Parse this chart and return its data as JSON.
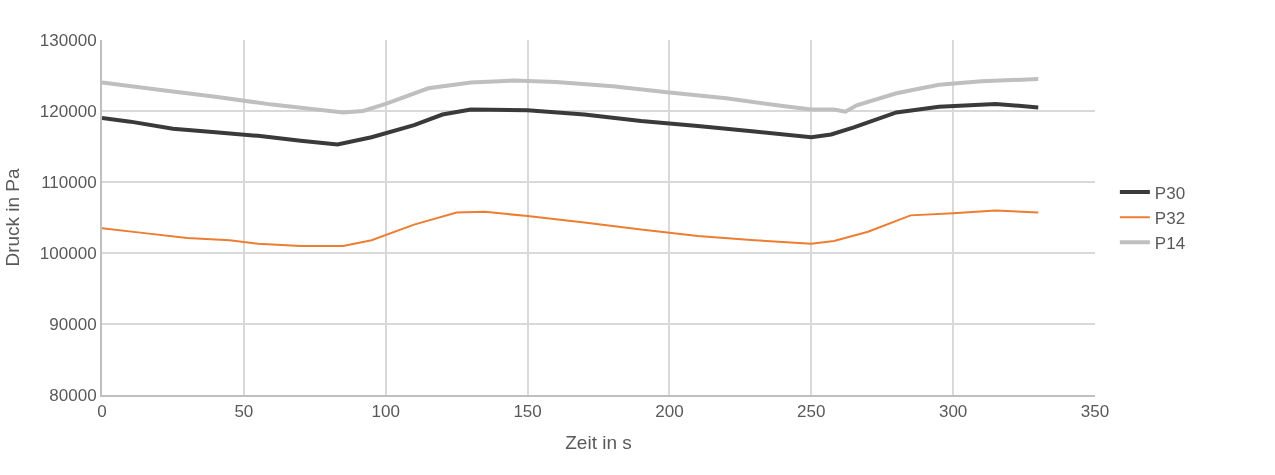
{
  "chart_data": {
    "type": "line",
    "xlabel": "Zeit in s",
    "ylabel": "Druck in Pa",
    "xlim": [
      0,
      350
    ],
    "xticks": [
      0,
      50,
      100,
      150,
      200,
      250,
      300,
      350
    ],
    "ylim": [
      80000,
      130000
    ],
    "yticks": [
      80000,
      90000,
      100000,
      110000,
      120000,
      130000
    ],
    "grid": true,
    "legend": "right",
    "marker": "none",
    "line_style": "solid",
    "series": [
      {
        "name": "P30",
        "color": "#3a3a3a",
        "x": [
          0,
          10,
          25,
          40,
          55,
          70,
          83,
          95,
          110,
          120,
          130,
          150,
          170,
          190,
          210,
          230,
          250,
          257,
          265,
          280,
          295,
          315,
          330
        ],
        "values": [
          119000,
          118500,
          117500,
          117000,
          116500,
          115800,
          115300,
          116300,
          118000,
          119500,
          120200,
          120100,
          119500,
          118600,
          117900,
          117100,
          116300,
          116700,
          117700,
          119800,
          120600,
          121000,
          120500
        ]
      },
      {
        "name": "P32",
        "color": "#ed7d31",
        "x": [
          0,
          15,
          30,
          45,
          55,
          70,
          85,
          95,
          110,
          125,
          135,
          150,
          170,
          190,
          210,
          230,
          250,
          258,
          270,
          285,
          300,
          315,
          330
        ],
        "values": [
          103500,
          102800,
          102100,
          101800,
          101300,
          101000,
          101000,
          101800,
          104000,
          105700,
          105800,
          105200,
          104300,
          103300,
          102400,
          101800,
          101300,
          101700,
          103000,
          105300,
          105600,
          106000,
          105700
        ]
      },
      {
        "name": "P14",
        "color": "#bfbfbf",
        "x": [
          0,
          20,
          40,
          60,
          85,
          92,
          100,
          115,
          130,
          145,
          160,
          180,
          200,
          220,
          240,
          250,
          258,
          262,
          266,
          280,
          295,
          310,
          330
        ],
        "values": [
          124000,
          123000,
          122000,
          120900,
          119800,
          120000,
          121000,
          123200,
          124000,
          124300,
          124100,
          123500,
          122600,
          121800,
          120700,
          120200,
          120200,
          119900,
          120800,
          122500,
          123700,
          124200,
          124500
        ]
      }
    ]
  }
}
